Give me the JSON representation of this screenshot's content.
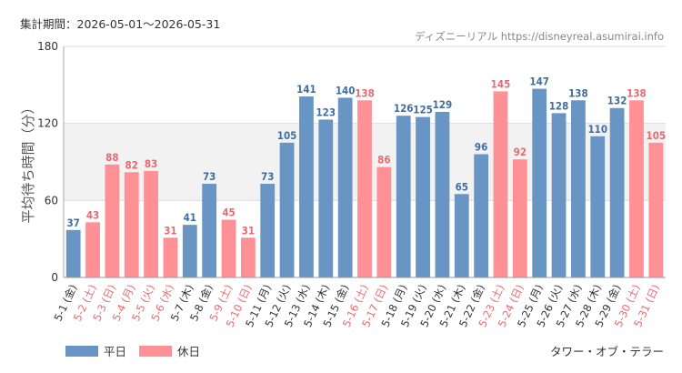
{
  "header": {
    "period": "集計期間：2026-05-01～2026-05-31",
    "source": "ディズニーリアル https://disneyreal.asumirai.info"
  },
  "footer": {
    "attraction": "タワー・オブ・テラー"
  },
  "colors": {
    "weekday": "#6895c4",
    "holiday": "#ff9096",
    "holiday_label": "#e86a72",
    "weekday_label": "#3f6f9e",
    "band": "#f2f2f2",
    "grid": "#dddddd",
    "axis": "#333333"
  },
  "chart_data": {
    "type": "bar",
    "ylabel": "平均待ち時間（分）",
    "ylim": [
      0,
      180
    ],
    "yticks": [
      0,
      60,
      120,
      180
    ],
    "highlight_band": [
      60,
      120
    ],
    "legend": [
      {
        "key": "weekday",
        "label": "平日"
      },
      {
        "key": "holiday",
        "label": "休日"
      }
    ],
    "categories": [
      "5-1 (金)",
      "5-2 (土)",
      "5-3 (日)",
      "5-4 (月)",
      "5-5 (火)",
      "5-6 (水)",
      "5-7 (木)",
      "5-8 (金)",
      "5-9 (土)",
      "5-10 (日)",
      "5-11 (月)",
      "5-12 (火)",
      "5-13 (水)",
      "5-14 (木)",
      "5-15 (金)",
      "5-16 (土)",
      "5-17 (日)",
      "5-18 (月)",
      "5-19 (火)",
      "5-20 (水)",
      "5-21 (木)",
      "5-22 (金)",
      "5-23 (土)",
      "5-24 (日)",
      "5-25 (月)",
      "5-26 (火)",
      "5-27 (水)",
      "5-28 (木)",
      "5-29 (金)",
      "5-30 (土)",
      "5-31 (日)"
    ],
    "values": [
      37,
      43,
      88,
      82,
      83,
      31,
      41,
      73,
      45,
      31,
      73,
      105,
      141,
      123,
      140,
      138,
      86,
      126,
      125,
      129,
      65,
      96,
      145,
      92,
      147,
      128,
      138,
      110,
      132,
      138,
      105
    ],
    "day_type": [
      "weekday",
      "holiday",
      "holiday",
      "holiday",
      "holiday",
      "holiday",
      "weekday",
      "weekday",
      "holiday",
      "holiday",
      "weekday",
      "weekday",
      "weekday",
      "weekday",
      "weekday",
      "holiday",
      "holiday",
      "weekday",
      "weekday",
      "weekday",
      "weekday",
      "weekday",
      "holiday",
      "holiday",
      "weekday",
      "weekday",
      "weekday",
      "weekday",
      "weekday",
      "holiday",
      "holiday"
    ]
  }
}
